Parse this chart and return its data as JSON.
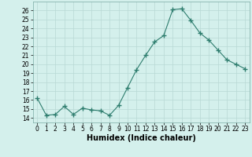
{
  "xlabel": "Humidex (Indice chaleur)",
  "ylabel": "",
  "x": [
    0,
    1,
    2,
    3,
    4,
    5,
    6,
    7,
    8,
    9,
    10,
    11,
    12,
    13,
    14,
    15,
    16,
    17,
    18,
    19,
    20,
    21,
    22,
    23
  ],
  "y": [
    16.2,
    14.3,
    14.4,
    15.3,
    14.4,
    15.1,
    14.9,
    14.8,
    14.3,
    15.4,
    17.4,
    19.4,
    21.0,
    22.5,
    23.2,
    26.1,
    26.2,
    24.9,
    23.5,
    22.7,
    21.6,
    20.5,
    20.0,
    19.5
  ],
  "line_color": "#2e7d6e",
  "marker": "+",
  "marker_size": 4,
  "bg_color": "#d4f0ec",
  "grid_color": "#b8d8d4",
  "ylim": [
    13.5,
    27.0
  ],
  "xlim": [
    -0.5,
    23.5
  ],
  "yticks": [
    14,
    15,
    16,
    17,
    18,
    19,
    20,
    21,
    22,
    23,
    24,
    25,
    26
  ],
  "xticks": [
    0,
    1,
    2,
    3,
    4,
    5,
    6,
    7,
    8,
    9,
    10,
    11,
    12,
    13,
    14,
    15,
    16,
    17,
    18,
    19,
    20,
    21,
    22,
    23
  ],
  "axis_fontsize": 6.5,
  "tick_fontsize": 5.5,
  "xlabel_fontsize": 7
}
